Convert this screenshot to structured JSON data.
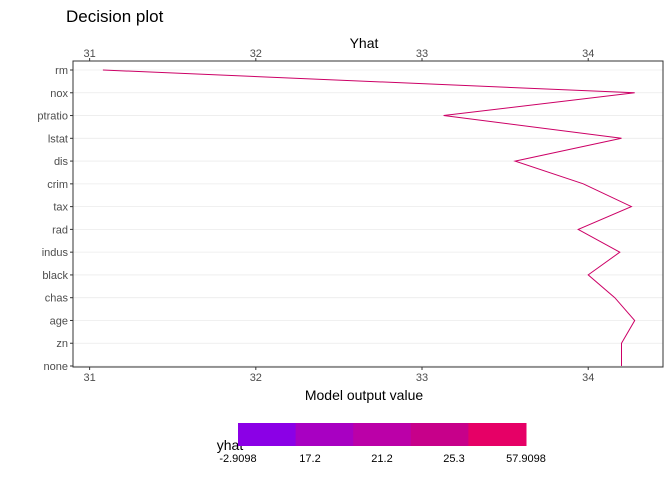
{
  "chart_data": {
    "type": "line",
    "title": "Decision plot",
    "top_axis_title": "Yhat",
    "xlabel": "Model output value",
    "xlim": [
      30.9,
      34.45
    ],
    "x_ticks": [
      "31",
      "32",
      "33",
      "34"
    ],
    "features": [
      "rm",
      "nox",
      "ptratio",
      "lstat",
      "dis",
      "crim",
      "tax",
      "rad",
      "indus",
      "black",
      "chas",
      "age",
      "zn",
      "none"
    ],
    "series": [
      {
        "values": [
          31.08,
          34.28,
          33.13,
          34.2,
          33.56,
          33.97,
          34.26,
          33.94,
          34.19,
          34.0,
          34.16,
          34.28,
          34.2,
          34.2
        ]
      }
    ],
    "line_color": "#cc0066",
    "grid": true,
    "legend": {
      "title": "yhat",
      "position": "bottom",
      "labels": [
        "-2.9098",
        "17.2",
        "21.2",
        "25.3",
        "57.9098"
      ],
      "colors": [
        "#8b00e6",
        "#a800c2",
        "#bb00a8",
        "#c7008a",
        "#e60066"
      ]
    }
  }
}
